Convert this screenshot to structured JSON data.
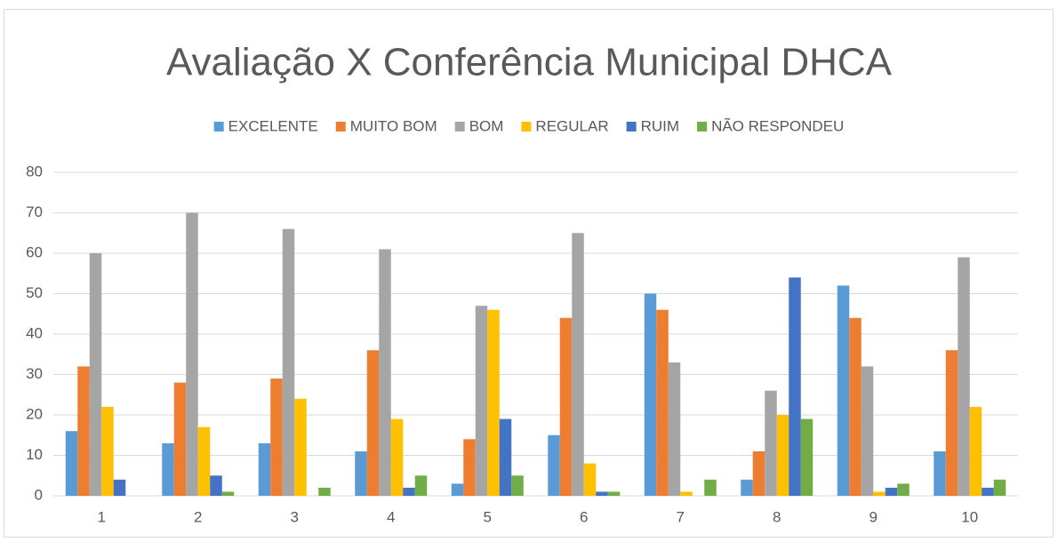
{
  "chart_data": {
    "type": "bar",
    "title": "Avaliação X Conferência Municipal DHCA",
    "categories": [
      "1",
      "2",
      "3",
      "4",
      "5",
      "6",
      "7",
      "8",
      "9",
      "10"
    ],
    "series": [
      {
        "name": "EXCELENTE",
        "color": "#5b9bd5",
        "values": [
          16,
          13,
          13,
          11,
          3,
          15,
          50,
          4,
          52,
          11
        ]
      },
      {
        "name": "MUITO BOM",
        "color": "#ed7d31",
        "values": [
          32,
          28,
          29,
          36,
          14,
          44,
          46,
          11,
          44,
          36
        ]
      },
      {
        "name": "BOM",
        "color": "#a5a5a5",
        "values": [
          60,
          70,
          66,
          61,
          47,
          65,
          33,
          26,
          32,
          59
        ]
      },
      {
        "name": "REGULAR",
        "color": "#ffc000",
        "values": [
          22,
          17,
          24,
          19,
          46,
          8,
          1,
          20,
          1,
          22
        ]
      },
      {
        "name": "RUIM",
        "color": "#4472c4",
        "values": [
          4,
          5,
          0,
          2,
          19,
          1,
          0,
          54,
          2,
          2
        ]
      },
      {
        "name": "NÃO RESPONDEU",
        "color": "#70ad47",
        "values": [
          0,
          1,
          2,
          5,
          5,
          1,
          4,
          19,
          3,
          4
        ]
      }
    ],
    "ylim": [
      0,
      80
    ],
    "yticks": [
      0,
      10,
      20,
      30,
      40,
      50,
      60,
      70,
      80
    ],
    "grid": true,
    "legend": "top"
  }
}
